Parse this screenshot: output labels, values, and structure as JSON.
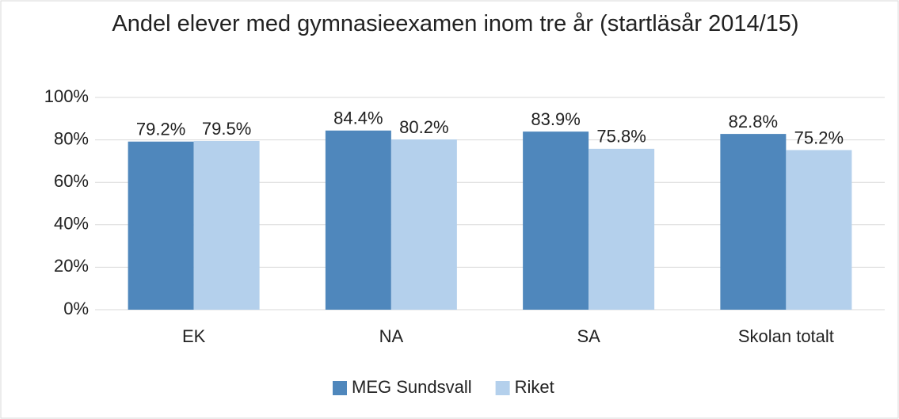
{
  "chart_data": {
    "type": "bar",
    "title": "Andel elever med gymnasieexamen inom tre år (startläsår 2014/15)",
    "categories": [
      "EK",
      "NA",
      "SA",
      "Skolan totalt"
    ],
    "series": [
      {
        "name": "MEG Sundsvall",
        "color": "#4f87bc",
        "values": [
          79.2,
          84.4,
          83.9,
          82.8
        ],
        "value_labels": [
          "79.2%",
          "84.4%",
          "83.9%",
          "82.8%"
        ]
      },
      {
        "name": "Riket",
        "color": "#b4d0ec",
        "values": [
          79.5,
          80.2,
          75.8,
          75.2
        ],
        "value_labels": [
          "79.5%",
          "80.2%",
          "75.8%",
          "75.2%"
        ]
      }
    ],
    "ylim": [
      0,
      100
    ],
    "yticks": [
      {
        "value": 0,
        "label": "0%"
      },
      {
        "value": 20,
        "label": "20%"
      },
      {
        "value": 40,
        "label": "40%"
      },
      {
        "value": 60,
        "label": "60%"
      },
      {
        "value": 80,
        "label": "80%"
      },
      {
        "value": 100,
        "label": "100%"
      }
    ],
    "grid": true,
    "legend": "bottom"
  }
}
